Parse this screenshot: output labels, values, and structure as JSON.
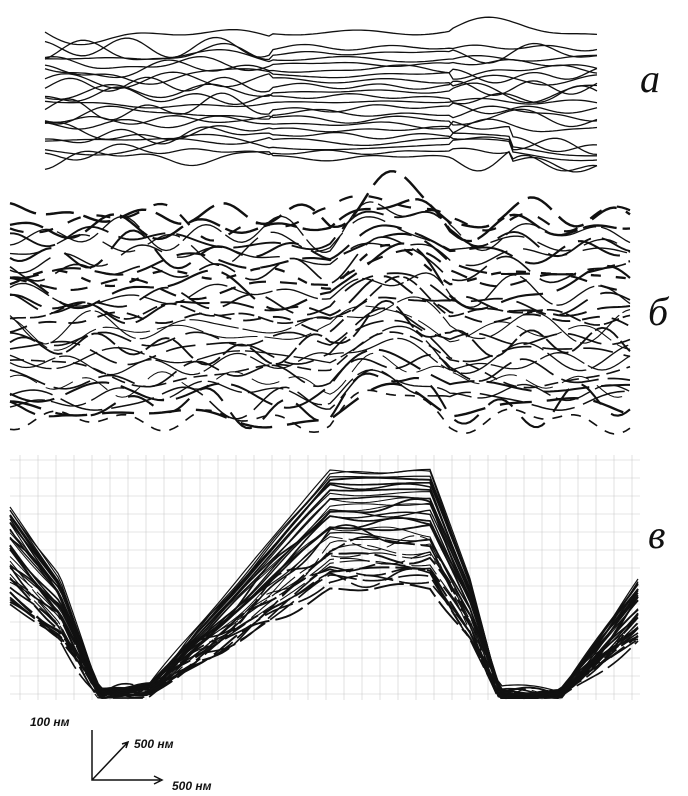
{
  "panels": [
    {
      "label": "а"
    },
    {
      "label": "б"
    },
    {
      "label": "в"
    }
  ],
  "scale": {
    "vertical": "100 нм",
    "depth": "500 нм",
    "horizontal": "500 нм"
  }
}
